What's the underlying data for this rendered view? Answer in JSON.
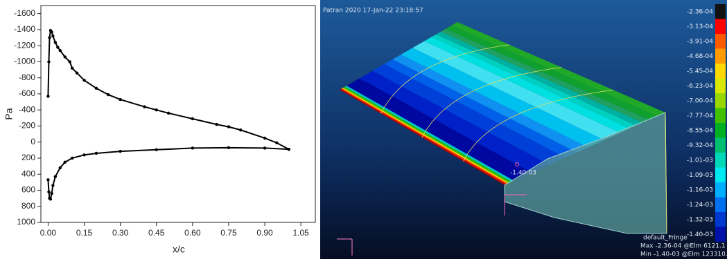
{
  "chart_data": {
    "type": "line",
    "xlabel": "x/c",
    "ylabel": "Pa",
    "xlim": [
      -0.03,
      1.11
    ],
    "xticks": [
      {
        "value": 0,
        "label": "0.00"
      },
      {
        "value": 0.15,
        "label": "0.15"
      },
      {
        "value": 0.3,
        "label": "0.30"
      },
      {
        "value": 0.45,
        "label": "0.45"
      },
      {
        "value": 0.6,
        "label": "0.60"
      },
      {
        "value": 0.75,
        "label": "0.75"
      },
      {
        "value": 0.9,
        "label": "0.90"
      },
      {
        "value": 1.05,
        "label": "1.05"
      }
    ],
    "ylim": [
      1000,
      -1700
    ],
    "yticks": [
      -1600,
      -1400,
      -1200,
      -1000,
      -800,
      -600,
      -400,
      -200,
      0,
      200,
      400,
      600,
      800,
      1000
    ],
    "series": [
      {
        "color": "#000000",
        "x": [
          0.0,
          0.003,
          0.006,
          0.01,
          0.015,
          0.02,
          0.03,
          0.04,
          0.05,
          0.07,
          0.09,
          0.1,
          0.12,
          0.15,
          0.2,
          0.25,
          0.3,
          0.4,
          0.45,
          0.5,
          0.6,
          0.7,
          0.75,
          0.8,
          0.9,
          0.95,
          1.0
        ],
        "values": [
          -570,
          -1000,
          -1300,
          -1390,
          -1370,
          -1320,
          -1240,
          -1180,
          -1140,
          -1060,
          -1000,
          -920,
          -860,
          -770,
          -670,
          -590,
          -530,
          -440,
          -400,
          -360,
          -290,
          -220,
          -190,
          -150,
          -50,
          10,
          90
        ]
      },
      {
        "color": "#000000",
        "x": [
          0.0,
          0.003,
          0.006,
          0.01,
          0.015,
          0.02,
          0.03,
          0.05,
          0.07,
          0.1,
          0.15,
          0.2,
          0.3,
          0.45,
          0.6,
          0.75,
          0.9,
          1.0
        ],
        "values": [
          470,
          620,
          700,
          710,
          640,
          540,
          430,
          320,
          250,
          200,
          160,
          140,
          115,
          95,
          75,
          70,
          75,
          90
        ]
      }
    ]
  },
  "viewport": {
    "title": "Patran 2020 17-Jan-22 23:18:57",
    "marker_label": "-1.40-03",
    "fringe_name": "default_Fringe",
    "max_text": "Max -2.36-04 @Elm 6121.1",
    "min_text": "Min -1.40-03 @Elm 123310.1",
    "legend": {
      "labels": [
        "-2.36-04",
        "-3.13-04",
        "-3.91-04",
        "-4.68-04",
        "-5.45-04",
        "-6.23-04",
        "-7.00-04",
        "-7.77-04",
        "-8.55-04",
        "-9.32-04",
        "-1.01-03",
        "-1.09-03",
        "-1.16-03",
        "-1.24-03",
        "-1.32-03",
        "-1.40-03"
      ],
      "colors": [
        "#111111",
        "#ff0000",
        "#ff5a00",
        "#ff9a00",
        "#ffd800",
        "#d8e800",
        "#98d800",
        "#40c000",
        "#00b020",
        "#00c070",
        "#00d8b8",
        "#00e8f0",
        "#00b0ff",
        "#0070f0",
        "#0038d0",
        "#0010a8"
      ]
    }
  }
}
